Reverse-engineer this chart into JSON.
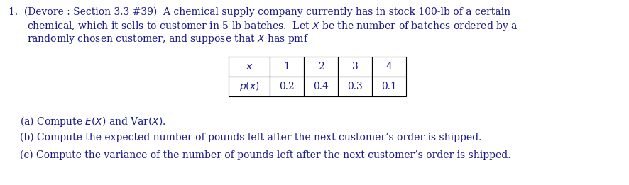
{
  "background_color": "#ffffff",
  "figsize": [
    8.86,
    2.61
  ],
  "dpi": 100,
  "line1": "1.  (Devore : Section 3.3 #39)  A chemical supply company currently has in stock 100-lb of a certain",
  "line2": "chemical, which it sells to customer in 5-lb batches.  Let $X$ be the number of batches ordered by a",
  "line3": "randomly chosen customer, and suppose that $X$ has pmf",
  "part_a": "(a) Compute $E(X)$ and Var$(X)$.",
  "part_b": "(b) Compute the expected number of pounds left after the next customer’s order is shipped.",
  "part_c": "(c) Compute the variance of the number of pounds left after the next customer’s order is shipped.",
  "table_col_labels": [
    "$x$",
    "1",
    "2",
    "3",
    "4"
  ],
  "table_row_label": "$p(x)$",
  "table_row_values": [
    "0.2",
    "0.4",
    "0.3",
    "0.1"
  ],
  "font_size": 10.0,
  "text_color": "#1a1a8c"
}
